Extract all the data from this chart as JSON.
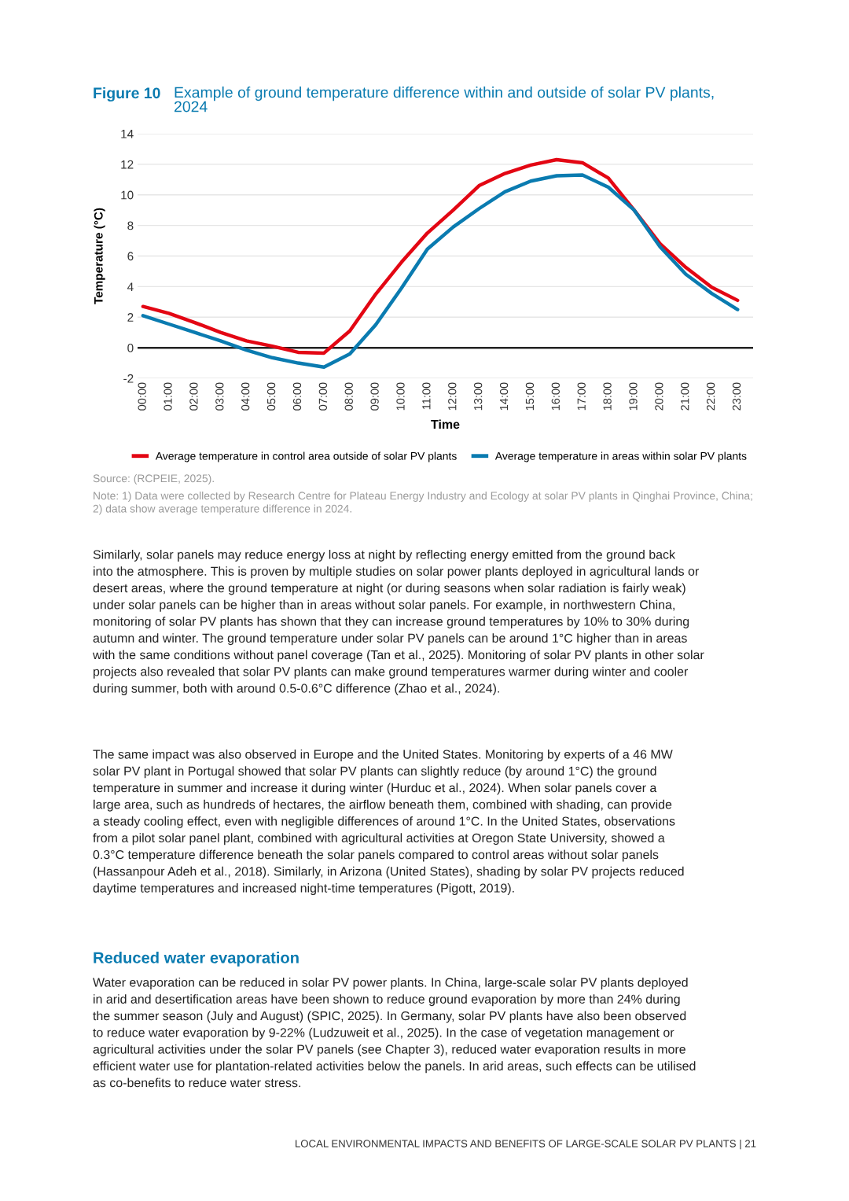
{
  "chart_data": {
    "type": "line",
    "title": "Figure 10",
    "subtitle": "Example of ground temperature difference within and outside of solar PV plants,\n2024",
    "xlabel": "Time",
    "ylabel": "Temperature (°C)",
    "categories": [
      "00:00",
      "01:00",
      "02:00",
      "03:00",
      "04:00",
      "05:00",
      "06:00",
      "07:00",
      "08:00",
      "09:00",
      "10:00",
      "11:00",
      "12:00",
      "13:00",
      "14:00",
      "15:00",
      "16:00",
      "17:00",
      "18:00",
      "19:00",
      "20:00",
      "21:00",
      "22:00",
      "23:00"
    ],
    "series": [
      {
        "name": "Average temperature in control area outside of solar PV plants",
        "color": "#e30613",
        "values": [
          2.7,
          2.25,
          1.65,
          1.0,
          0.45,
          0.1,
          -0.3,
          -0.35,
          1.1,
          3.5,
          5.6,
          7.5,
          9.0,
          10.6,
          11.4,
          11.95,
          12.3,
          12.1,
          11.1,
          9.0,
          6.8,
          5.25,
          3.95,
          3.1
        ]
      },
      {
        "name": "Average temperature in areas within solar PV plants",
        "color": "#0a7bb0",
        "values": [
          2.1,
          1.55,
          1.0,
          0.45,
          -0.15,
          -0.65,
          -1.0,
          -1.27,
          -0.4,
          1.5,
          3.9,
          6.45,
          7.9,
          9.1,
          10.2,
          10.9,
          11.25,
          11.3,
          10.5,
          9.0,
          6.6,
          4.8,
          3.55,
          2.5
        ]
      }
    ],
    "ylim": [
      -2,
      14
    ],
    "yticks": [
      -2,
      0,
      2,
      4,
      6,
      8,
      10,
      12,
      14
    ],
    "grid": "y",
    "legend": "bottom",
    "marker": "none",
    "line_style": "solid",
    "ref_lines": [
      {
        "axis": "y",
        "value": 0,
        "color": "#222222"
      }
    ],
    "annotations": [
      "Source: (RCPEIE, 2025).",
      "Note: 1) Data were collected by Research Centre for Plateau Energy Industry and Ecology at solar PV plants in Qinghai Province, China;\n2) data show average temperature difference in 2024.",
      "Similarly, solar panels may reduce energy loss at night by reflecting energy emitted from the ground back\ninto the atmosphere. This is proven by multiple studies on solar power plants deployed in agricultural lands or\ndesert areas, where the ground temperature at night (or during seasons when solar radiation is fairly weak)\nunder solar panels can be higher than in areas without solar panels. For example, in northwestern China,\nmonitoring of solar PV plants has shown that they can increase ground temperatures by 10% to 30% during\nautumn and winter. The ground temperature under solar PV panels can be around 1°C higher than in areas\nwith the same conditions without panel coverage (Tan et al., 2025). Monitoring of solar PV plants in other solar\nprojects also revealed that solar PV plants can make ground temperatures warmer during winter and cooler\nduring summer, both with around 0.5-0.6°C difference (Zhao et al., 2024).",
      "The same impact was also observed in Europe and the United States. Monitoring by experts of a 46 MW\nsolar PV plant in Portugal showed that solar PV plants can slightly reduce (by around 1°C) the ground\ntemperature in summer and increase it during winter (Hurduc et al., 2024). When solar panels cover a\nlarge area, such as hundreds of hectares, the airflow beneath them, combined with shading, can provide\na steady cooling effect, even with negligible differences of around 1°C. In the United States, observations\nfrom a pilot solar panel plant, combined with agricultural activities at Oregon State University, showed a\n0.3°C temperature difference beneath the solar panels compared to control areas without solar panels\n(Hassanpour Adeh et al., 2018). Similarly, in Arizona (United States), shading by solar PV projects reduced\ndaytime temperatures and increased night-time temperatures (Pigott, 2019).",
      "Reduced water evaporation",
      "Water evaporation can be reduced in solar PV power plants. In China, large-scale solar PV plants deployed\nin arid and desertification areas have been shown to reduce ground evaporation by more than 24% during\nthe summer season (July and August) (SPIC, 2025). In Germany, solar PV plants have also been observed\nto reduce water evaporation by 9-22% (Ludzuweit et al., 2025). In the case of vegetation management or\nagricultural activities under the solar PV panels (see Chapter 3), reduced water evaporation results in more\nefficient water use for plantation-related activities below the panels. In arid areas, such effects can be utilised\nas co-benefits to reduce water stress.",
      "LOCAL ENVIRONMENTAL IMPACTS AND BENEFITS OF LARGE-SCALE SOLAR PV PLANTS | 21"
    ]
  }
}
